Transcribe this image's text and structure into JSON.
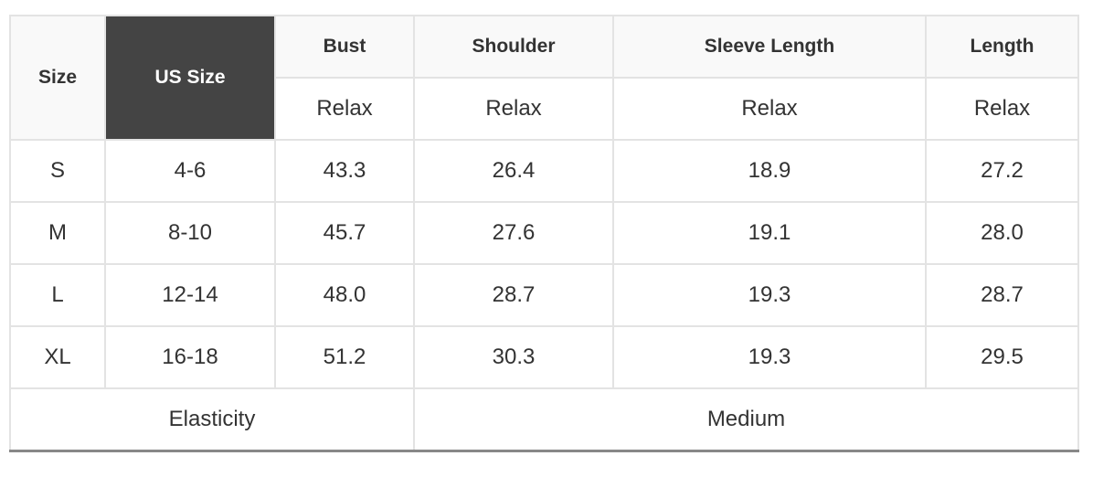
{
  "headers": {
    "size": "Size",
    "us_size": "US Size",
    "bust": "Bust",
    "shoulder": "Shoulder",
    "sleeve": "Sleeve Length",
    "length": "Length"
  },
  "subheaders": [
    "Relax",
    "Relax",
    "Relax",
    "Relax"
  ],
  "rows": [
    [
      "S",
      "4-6",
      "43.3",
      "26.4",
      "18.9",
      "27.2"
    ],
    [
      "M",
      "8-10",
      "45.7",
      "27.6",
      "19.1",
      "28.0"
    ],
    [
      "L",
      "12-14",
      "48.0",
      "28.7",
      "19.3",
      "28.7"
    ],
    [
      "XL",
      "16-18",
      "51.2",
      "30.3",
      "19.3",
      "29.5"
    ]
  ],
  "footer": {
    "label": "Elasticity",
    "value": "Medium"
  },
  "colors": {
    "header_dark": "#444444",
    "header_light": "#f9f9f9",
    "border": "#e3e3e3"
  }
}
